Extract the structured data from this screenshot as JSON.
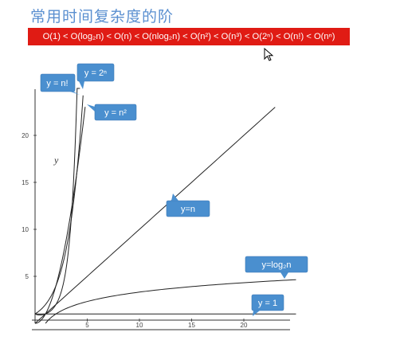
{
  "page": {
    "title": "常用时间复杂度的阶",
    "banner": "O(1) < O(log₂n) < O(n) < O(nlog₂n) < O(n²) < O(n³) < O(2ⁿ) < O(n!) < O(nⁿ)"
  },
  "icons": {
    "cursor": "mouse-pointer-icon"
  },
  "colors": {
    "title": "#5a8fd0",
    "banner_bg": "#e01b14",
    "callout": "#4a8fcf"
  },
  "chart_data": {
    "type": "line",
    "ylabel": "y",
    "xlabel": "",
    "xticks": [
      "5",
      "10",
      "15",
      "20"
    ],
    "yticks": [
      "5",
      "10",
      "15",
      "20"
    ],
    "xlim": [
      0,
      25
    ],
    "ylim": [
      0,
      25
    ],
    "series": [
      {
        "name": "y = 1",
        "x": [
          0,
          25
        ],
        "y": [
          1,
          1
        ]
      },
      {
        "name": "y=log₂n",
        "x": [
          1,
          2,
          4,
          8,
          16,
          25
        ],
        "y": [
          0,
          1,
          2,
          3,
          4,
          4.64
        ]
      },
      {
        "name": "y=n",
        "x": [
          0,
          23
        ],
        "y": [
          0,
          23
        ]
      },
      {
        "name": "y = n²",
        "x": [
          0,
          1,
          2,
          3,
          4,
          4.8
        ],
        "y": [
          0,
          1,
          4,
          9,
          16,
          23
        ]
      },
      {
        "name": "y = 2ⁿ",
        "x": [
          0,
          1,
          2,
          3,
          4,
          4.6
        ],
        "y": [
          1,
          2,
          4,
          8,
          16,
          24.3
        ]
      },
      {
        "name": "y = n!",
        "x": [
          0,
          1,
          2,
          3,
          4,
          4.3
        ],
        "y": [
          1,
          1,
          2,
          6,
          24,
          24.5
        ]
      }
    ]
  },
  "labels": {
    "y1": "y = 1",
    "ylog": "y=log₂n",
    "yn": "y=n",
    "yn2": "y = n²",
    "y2n": "y = 2ⁿ",
    "ynfact": "y = n!"
  }
}
